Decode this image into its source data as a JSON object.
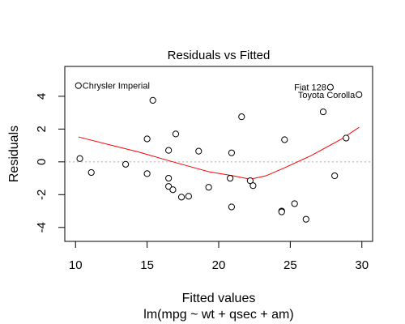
{
  "chart_data": {
    "type": "scatter",
    "title": "Residuals vs Fitted",
    "xlabel": "Fitted values",
    "xsublabel": "lm(mpg ~ wt + qsec + am)",
    "ylabel": "Residuals",
    "xlim": [
      9.25,
      30.75
    ],
    "ylim": [
      -4.85,
      5.82
    ],
    "xticks": [
      10,
      15,
      20,
      25,
      30
    ],
    "yticks": [
      -4,
      -2,
      0,
      2,
      4
    ],
    "grid": false,
    "reference_line": {
      "y": 0,
      "style": "dotted",
      "color": "#aaaaaa"
    },
    "colors": {
      "points": "#000000",
      "smoother": "#ff0000",
      "axes": "#000000"
    },
    "points": [
      {
        "x": 10.2,
        "y": 4.65
      },
      {
        "x": 10.3,
        "y": 0.2
      },
      {
        "x": 11.1,
        "y": -0.65
      },
      {
        "x": 13.5,
        "y": -0.15
      },
      {
        "x": 15.0,
        "y": 1.4
      },
      {
        "x": 15.0,
        "y": -0.72
      },
      {
        "x": 15.4,
        "y": 3.75
      },
      {
        "x": 16.5,
        "y": 0.7
      },
      {
        "x": 16.5,
        "y": -1.0
      },
      {
        "x": 16.5,
        "y": -1.5
      },
      {
        "x": 16.8,
        "y": -1.7
      },
      {
        "x": 17.0,
        "y": 1.7
      },
      {
        "x": 17.4,
        "y": -2.15
      },
      {
        "x": 17.9,
        "y": -2.1
      },
      {
        "x": 18.6,
        "y": 0.65
      },
      {
        "x": 19.3,
        "y": -1.55
      },
      {
        "x": 20.8,
        "y": -1.0
      },
      {
        "x": 20.9,
        "y": 0.55
      },
      {
        "x": 20.9,
        "y": -2.75
      },
      {
        "x": 21.6,
        "y": 2.75
      },
      {
        "x": 22.2,
        "y": -1.15
      },
      {
        "x": 22.4,
        "y": -1.45
      },
      {
        "x": 24.4,
        "y": -3.0
      },
      {
        "x": 24.4,
        "y": -3.05
      },
      {
        "x": 24.6,
        "y": 1.35
      },
      {
        "x": 25.3,
        "y": -2.55
      },
      {
        "x": 26.1,
        "y": -3.5
      },
      {
        "x": 27.3,
        "y": 3.05
      },
      {
        "x": 27.8,
        "y": 4.55
      },
      {
        "x": 28.1,
        "y": -0.85
      },
      {
        "x": 28.9,
        "y": 1.45
      },
      {
        "x": 29.8,
        "y": 4.1
      }
    ],
    "smoother": [
      {
        "x": 10.2,
        "y": 1.52
      },
      {
        "x": 12.2,
        "y": 1.08
      },
      {
        "x": 14.4,
        "y": 0.6
      },
      {
        "x": 16.8,
        "y": 0.0
      },
      {
        "x": 19.3,
        "y": -0.6
      },
      {
        "x": 21.0,
        "y": -0.85
      },
      {
        "x": 22.2,
        "y": -1.06
      },
      {
        "x": 23.3,
        "y": -0.85
      },
      {
        "x": 24.5,
        "y": -0.4
      },
      {
        "x": 26.5,
        "y": 0.4
      },
      {
        "x": 28.5,
        "y": 1.35
      },
      {
        "x": 29.8,
        "y": 2.1
      }
    ],
    "annotations": [
      {
        "text": "Chrysler Imperial",
        "x": 10.2,
        "y": 4.65,
        "side": "right"
      },
      {
        "text": "Fiat 128",
        "x": 27.8,
        "y": 4.55,
        "side": "left"
      },
      {
        "text": "Toyota Corolla",
        "x": 29.8,
        "y": 4.1,
        "side": "left"
      }
    ]
  }
}
